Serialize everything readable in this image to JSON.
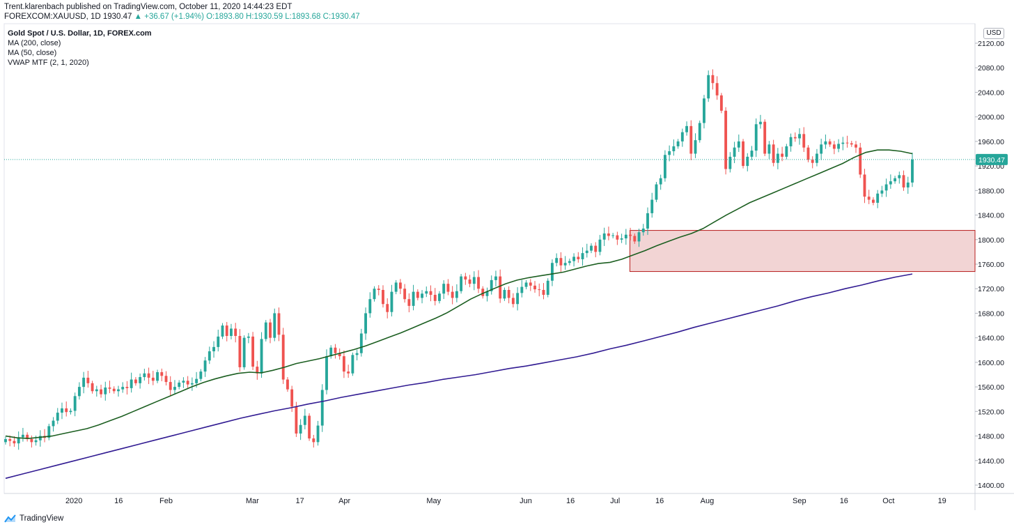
{
  "header": {
    "publisher": "Trent.klarenbach published on TradingView.com, October 11, 2020 14:44:23 EDT",
    "symbol_prefix": "FOREXCOM:XAUUSD, 1D",
    "last": "1930.47",
    "change": "▲ +36.67 (+1.94%)",
    "ohlc": "O:1893.80 H:1930.59 L:1893.68 C:1930.47"
  },
  "legend": {
    "title": "Gold Spot / U.S. Dollar, 1D, FOREX.com",
    "ma200": "MA (200, close)",
    "ma50": "MA (50, close)",
    "vwap": "VWAP MTF (2, 1, 2020)"
  },
  "currency_label": "USD",
  "last_price_label": "1930.47",
  "footer": {
    "brand": "TradingView"
  },
  "colors": {
    "up": "#26a69a",
    "down": "#ef5350",
    "ma50": "#1b5e20",
    "ma200": "#311b92",
    "zone_fill": "#f2d4d4",
    "zone_border": "#b71c1c"
  },
  "chart_data": {
    "type": "candlestick",
    "y_axis": {
      "min": 1390,
      "max": 2140,
      "ticks": [
        1400,
        1440,
        1480,
        1520,
        1560,
        1600,
        1640,
        1680,
        1720,
        1760,
        1800,
        1840,
        1880,
        1920,
        1960,
        2000,
        2040,
        2080,
        2120
      ]
    },
    "x_axis": {
      "tick_labels": [
        {
          "label": "2020",
          "date": "2020-01-01"
        },
        {
          "label": "16",
          "date": "2020-01-16"
        },
        {
          "label": "Feb",
          "date": "2020-02-01"
        },
        {
          "label": "Mar",
          "date": "2020-03-01"
        },
        {
          "label": "17",
          "date": "2020-03-17"
        },
        {
          "label": "Apr",
          "date": "2020-04-01"
        },
        {
          "label": "May",
          "date": "2020-05-01"
        },
        {
          "label": "Jun",
          "date": "2020-06-01"
        },
        {
          "label": "16",
          "date": "2020-06-16"
        },
        {
          "label": "Jul",
          "date": "2020-07-01"
        },
        {
          "label": "16",
          "date": "2020-07-16"
        },
        {
          "label": "Aug",
          "date": "2020-08-01"
        },
        {
          "label": "Sep",
          "date": "2020-09-01"
        },
        {
          "label": "16",
          "date": "2020-09-16"
        },
        {
          "label": "Oct",
          "date": "2020-10-01"
        },
        {
          "label": "19",
          "date": "2020-10-19"
        }
      ]
    },
    "candles_close": [
      1475,
      1472,
      1468,
      1478,
      1482,
      1475,
      1470,
      1473,
      1480,
      1477,
      1496,
      1505,
      1518,
      1525,
      1519,
      1521,
      1545,
      1560,
      1575,
      1566,
      1553,
      1556,
      1548,
      1559,
      1557,
      1553,
      1556,
      1560,
      1558,
      1572,
      1566,
      1576,
      1582,
      1575,
      1570,
      1584,
      1578,
      1568,
      1555,
      1560,
      1567,
      1570,
      1564,
      1566,
      1573,
      1585,
      1603,
      1618,
      1625,
      1642,
      1660,
      1643,
      1655,
      1643,
      1592,
      1640,
      1642,
      1593,
      1582,
      1638,
      1665,
      1640,
      1680,
      1645,
      1572,
      1556,
      1528,
      1484,
      1498,
      1513,
      1476,
      1470,
      1497,
      1555,
      1610,
      1624,
      1615,
      1610,
      1585,
      1582,
      1612,
      1615,
      1647,
      1680,
      1703,
      1720,
      1718,
      1695,
      1682,
      1715,
      1730,
      1720,
      1703,
      1692,
      1715,
      1705,
      1712,
      1716,
      1710,
      1700,
      1712,
      1728,
      1715,
      1705,
      1716,
      1740,
      1735,
      1728,
      1739,
      1720,
      1708,
      1716,
      1734,
      1740,
      1704,
      1718,
      1705,
      1695,
      1713,
      1723,
      1730,
      1725,
      1719,
      1718,
      1710,
      1733,
      1762,
      1770,
      1758,
      1762,
      1765,
      1772,
      1768,
      1778,
      1782,
      1790,
      1780,
      1800,
      1810,
      1806,
      1807,
      1800,
      1802,
      1808,
      1806,
      1797,
      1812,
      1818,
      1843,
      1865,
      1890,
      1900,
      1938,
      1944,
      1952,
      1960,
      1975,
      1985,
      1940,
      1962,
      1990,
      2030,
      2068,
      2055,
      2035,
      2010,
      1915,
      1935,
      1950,
      1960,
      1920,
      1935,
      1945,
      1988,
      1992,
      1940,
      1955,
      1925,
      1940,
      1935,
      1952,
      1967,
      1965,
      1972,
      1950,
      1930,
      1925,
      1940,
      1955,
      1960,
      1955,
      1948,
      1956,
      1958,
      1957,
      1955,
      1950,
      1906,
      1870,
      1865,
      1860,
      1875,
      1880,
      1890,
      1895,
      1900,
      1905,
      1885,
      1893,
      1930.47
    ],
    "series": [
      {
        "name": "MA (50, close)",
        "values": [
          1480,
          1477,
          1476,
          1478,
          1480,
          1484,
          1488,
          1492,
          1498,
          1505,
          1512,
          1520,
          1528,
          1536,
          1544,
          1552,
          1560,
          1567,
          1573,
          1578,
          1582,
          1584,
          1583,
          1587,
          1592,
          1598,
          1602,
          1606,
          1611,
          1616,
          1621,
          1627,
          1634,
          1641,
          1648,
          1656,
          1664,
          1672,
          1681,
          1692,
          1703,
          1712,
          1720,
          1728,
          1734,
          1738,
          1741,
          1744,
          1747,
          1752,
          1757,
          1761,
          1763,
          1768,
          1775,
          1782,
          1790,
          1797,
          1804,
          1810,
          1818,
          1829,
          1840,
          1850,
          1860,
          1868,
          1876,
          1884,
          1892,
          1900,
          1908,
          1916,
          1924,
          1934,
          1942,
          1946,
          1946,
          1944,
          1940
        ]
      },
      {
        "name": "MA (200, close)",
        "values": [
          1411,
          1418,
          1425,
          1432,
          1439,
          1446,
          1453,
          1460,
          1467,
          1474,
          1481,
          1488,
          1495,
          1502,
          1509,
          1515,
          1521,
          1526,
          1532,
          1537,
          1543,
          1548,
          1553,
          1558,
          1563,
          1567,
          1572,
          1576,
          1580,
          1585,
          1590,
          1594,
          1599,
          1604,
          1609,
          1615,
          1622,
          1628,
          1635,
          1642,
          1649,
          1657,
          1664,
          1671,
          1678,
          1685,
          1692,
          1700,
          1707,
          1713,
          1720,
          1726,
          1733,
          1739,
          1744
        ]
      },
      {
        "name": "VWAP zone",
        "values": [
          1815,
          1748
        ]
      }
    ]
  }
}
